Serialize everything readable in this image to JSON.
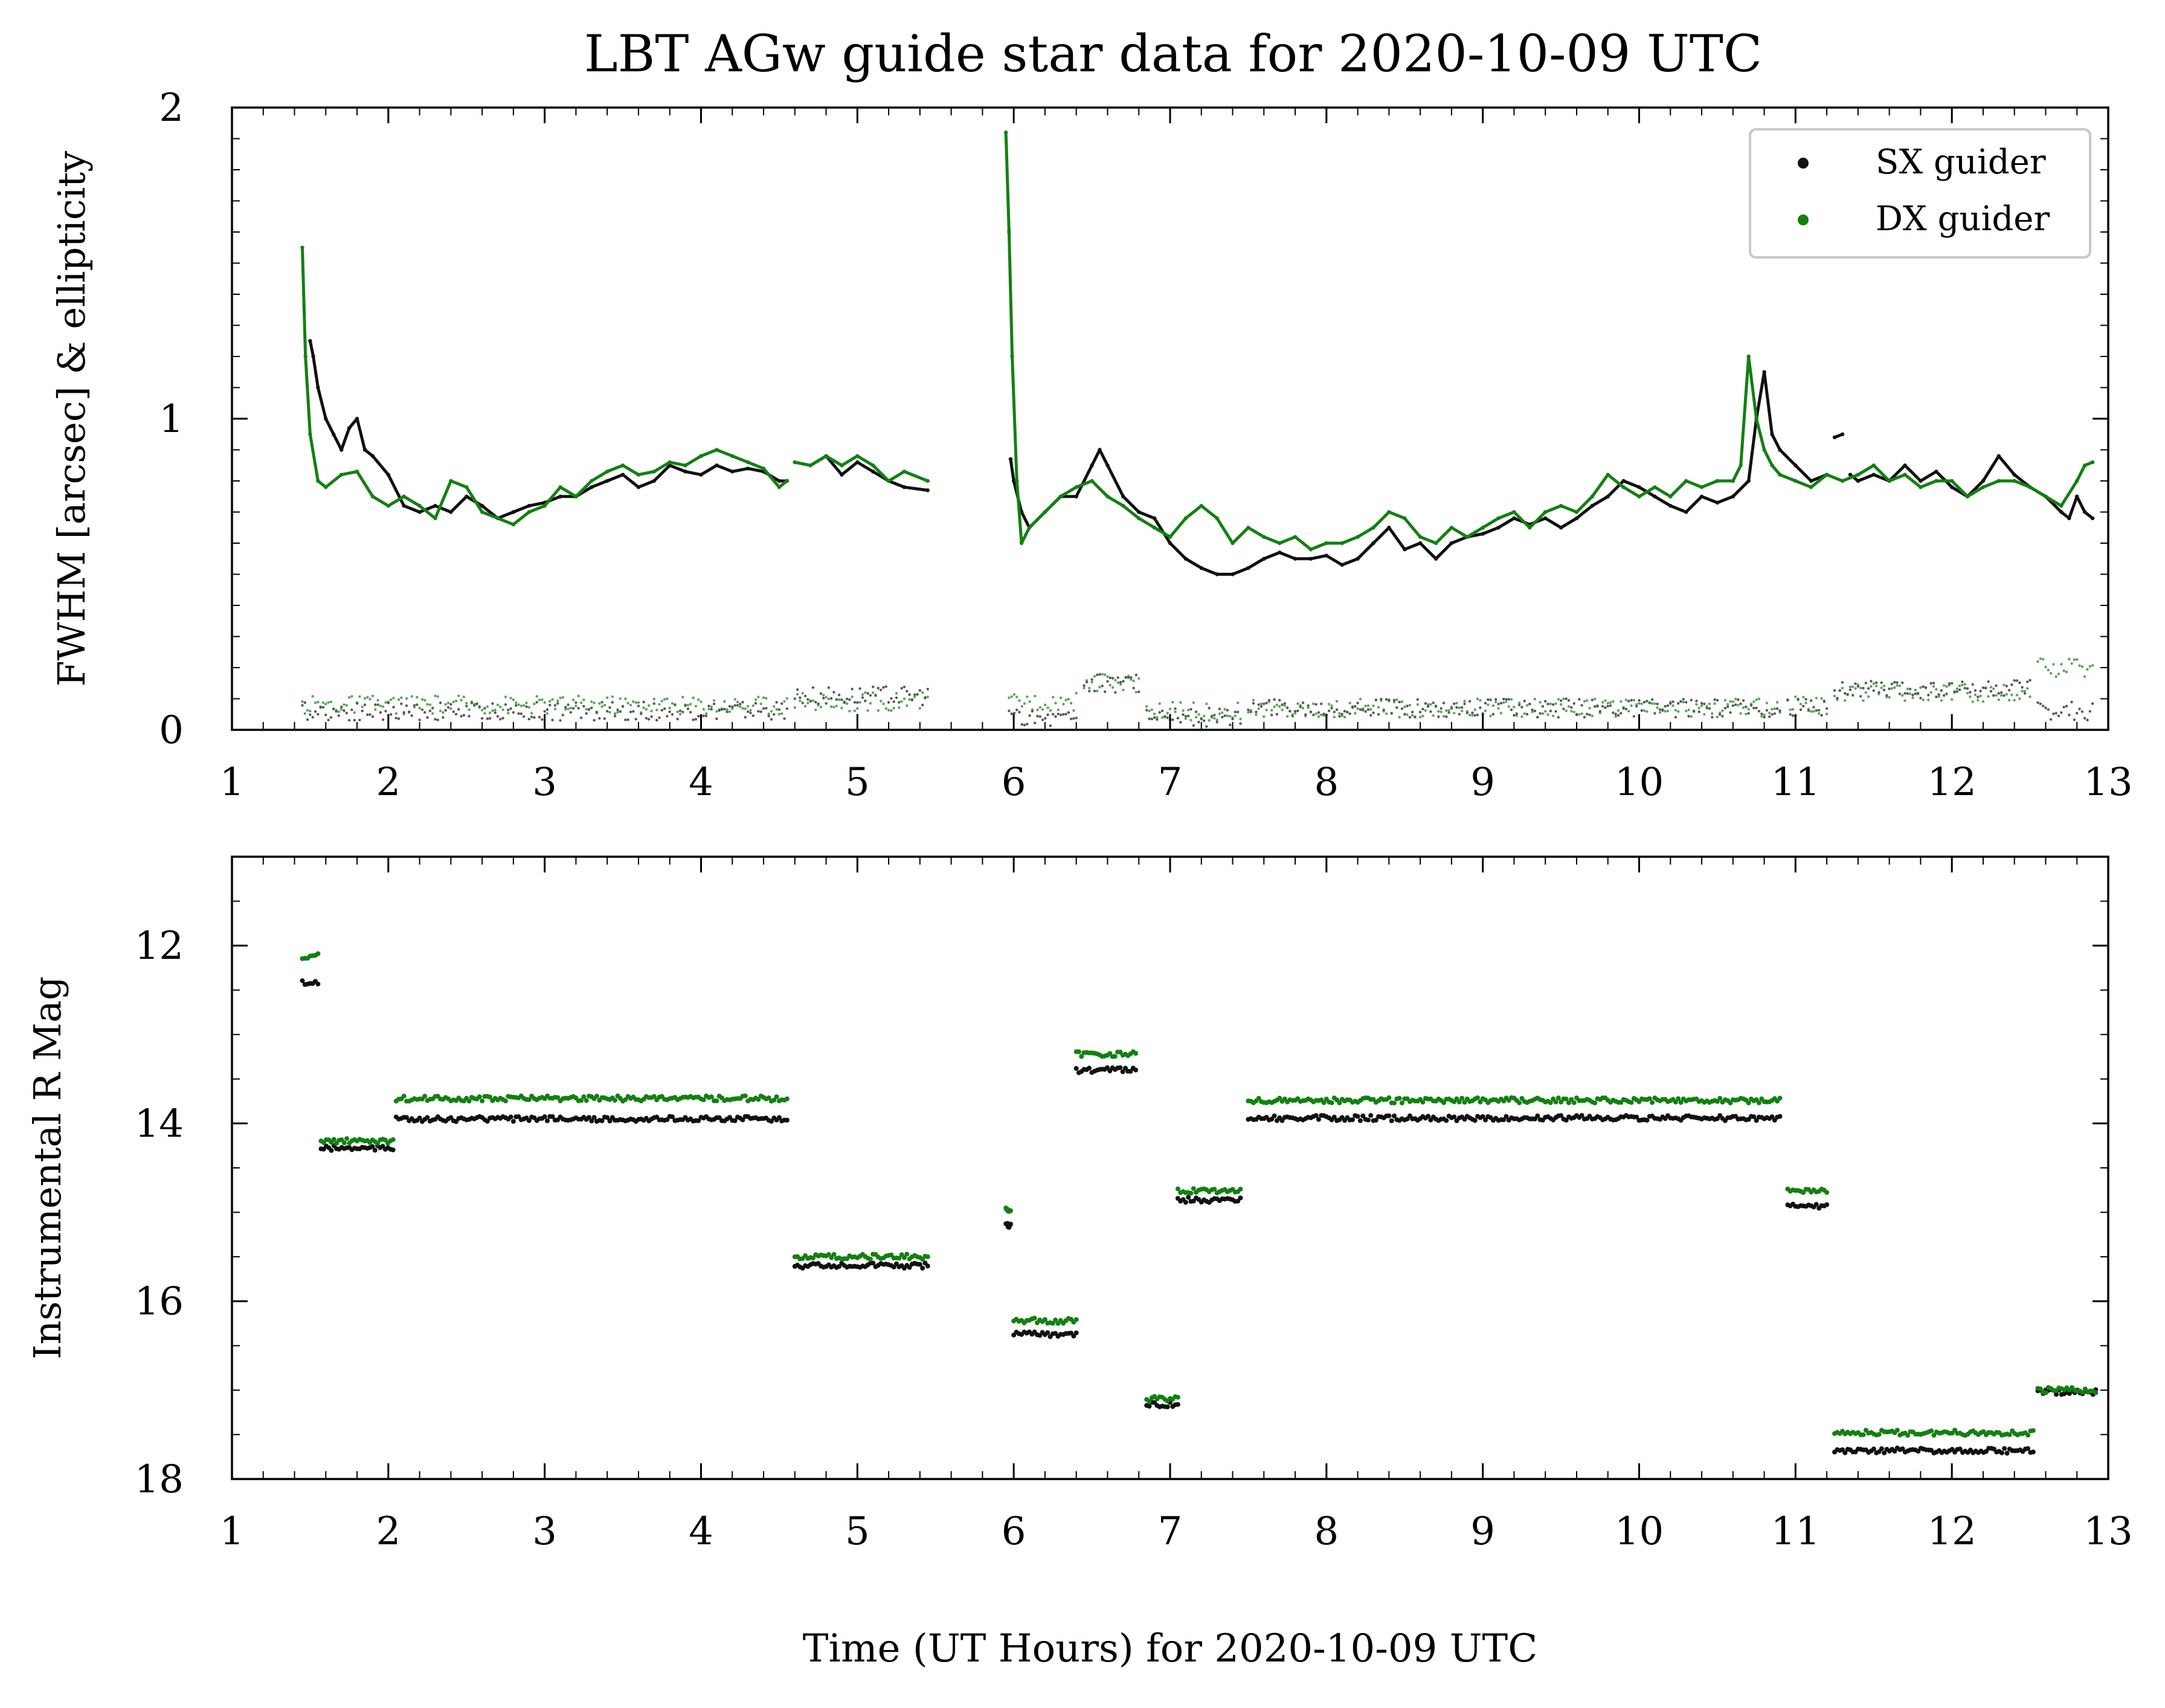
{
  "figure": {
    "title": "LBT AGw guide star data for 2020-10-09 UTC",
    "xlabel": "Time (UT Hours) for 2020-10-09 UTC",
    "colors": {
      "sx": "#111111",
      "dx": "#138012",
      "axis": "#000000",
      "background": "#ffffff"
    }
  },
  "chart_data": [
    {
      "type": "scatter",
      "panel": "top",
      "title": "LBT AGw guide star data for 2020-10-09 UTC",
      "xlabel": "",
      "ylabel": "FWHM [arcsec] & ellipticity",
      "xlim": [
        1,
        13
      ],
      "ylim": [
        0,
        2
      ],
      "xticks": [
        "1",
        "2",
        "3",
        "4",
        "5",
        "6",
        "7",
        "8",
        "9",
        "10",
        "11",
        "12",
        "13"
      ],
      "yticks": [
        "0",
        "1",
        "2"
      ],
      "grid": false,
      "legend": {
        "placement": "top-right",
        "entries": [
          "SX guider",
          "DX guider"
        ]
      },
      "series": [
        {
          "name": "SX guider",
          "color": "#111111",
          "kind": "fwhm",
          "x": [
            1.5,
            1.52,
            1.55,
            1.6,
            1.65,
            1.7,
            1.75,
            1.8,
            1.85,
            1.9,
            2.0,
            2.1,
            2.2,
            2.3,
            2.4,
            2.5,
            2.6,
            2.7,
            2.8,
            2.9,
            3.0,
            3.1,
            3.2,
            3.3,
            3.4,
            3.5,
            3.6,
            3.7,
            3.8,
            3.9,
            4.0,
            4.1,
            4.2,
            4.3,
            4.4,
            4.5,
            4.55,
            null,
            4.6,
            4.7,
            4.8,
            4.9,
            5.0,
            5.1,
            5.2,
            5.3,
            5.45,
            null,
            5.98,
            6.0,
            6.05,
            6.1,
            6.2,
            6.3,
            6.4,
            6.5,
            6.55,
            6.6,
            6.7,
            6.8,
            6.9,
            7.0,
            7.1,
            7.2,
            7.3,
            7.4,
            7.5,
            7.6,
            7.7,
            7.8,
            7.9,
            8.0,
            8.1,
            8.2,
            8.3,
            8.4,
            8.5,
            8.6,
            8.7,
            8.8,
            8.9,
            9.0,
            9.1,
            9.2,
            9.3,
            9.4,
            9.5,
            9.6,
            9.7,
            9.8,
            9.9,
            10.0,
            10.1,
            10.2,
            10.3,
            10.4,
            10.5,
            10.6,
            10.7,
            10.75,
            10.8,
            10.85,
            10.9,
            11.0,
            11.1,
            11.2,
            null,
            11.25,
            11.3,
            null,
            11.35,
            11.4,
            11.5,
            11.6,
            11.7,
            11.8,
            11.9,
            12.0,
            12.1,
            12.2,
            12.3,
            12.4,
            12.5,
            12.6,
            12.7,
            12.75,
            12.8,
            12.85,
            12.9
          ],
          "y": [
            1.25,
            1.2,
            1.1,
            1.0,
            0.95,
            0.9,
            0.97,
            1.0,
            0.9,
            0.88,
            0.82,
            0.72,
            0.7,
            0.72,
            0.7,
            0.75,
            0.72,
            0.68,
            0.7,
            0.72,
            0.73,
            0.75,
            0.75,
            0.78,
            0.8,
            0.82,
            0.78,
            0.8,
            0.85,
            0.83,
            0.82,
            0.85,
            0.83,
            0.84,
            0.83,
            0.8,
            0.8,
            null,
            0.86,
            0.85,
            0.88,
            0.82,
            0.86,
            0.83,
            0.8,
            0.78,
            0.77,
            null,
            0.87,
            0.8,
            0.7,
            0.65,
            0.7,
            0.75,
            0.75,
            0.85,
            0.9,
            0.85,
            0.75,
            0.7,
            0.68,
            0.6,
            0.55,
            0.52,
            0.5,
            0.5,
            0.52,
            0.55,
            0.57,
            0.55,
            0.55,
            0.56,
            0.53,
            0.55,
            0.6,
            0.65,
            0.58,
            0.6,
            0.55,
            0.6,
            0.62,
            0.63,
            0.65,
            0.68,
            0.66,
            0.68,
            0.65,
            0.68,
            0.72,
            0.75,
            0.8,
            0.78,
            0.75,
            0.72,
            0.7,
            0.75,
            0.73,
            0.75,
            0.8,
            1.0,
            1.15,
            0.95,
            0.9,
            0.85,
            0.8,
            0.82,
            null,
            0.94,
            0.95,
            null,
            0.82,
            0.8,
            0.82,
            0.8,
            0.85,
            0.8,
            0.83,
            0.78,
            0.75,
            0.8,
            0.88,
            0.82,
            0.78,
            0.75,
            0.7,
            0.68,
            0.75,
            0.7,
            0.68
          ]
        },
        {
          "name": "DX guider",
          "color": "#138012",
          "kind": "fwhm",
          "x": [
            1.45,
            1.47,
            1.5,
            1.55,
            1.6,
            1.7,
            1.8,
            1.9,
            2.0,
            2.1,
            2.2,
            2.3,
            2.4,
            2.5,
            2.6,
            2.7,
            2.8,
            2.9,
            3.0,
            3.1,
            3.2,
            3.3,
            3.4,
            3.5,
            3.6,
            3.7,
            3.8,
            3.9,
            4.0,
            4.1,
            4.2,
            4.3,
            4.4,
            4.5,
            4.55,
            null,
            4.6,
            4.7,
            4.8,
            4.9,
            5.0,
            5.1,
            5.2,
            5.3,
            5.45,
            null,
            5.95,
            5.97,
            5.99,
            6.02,
            6.05,
            6.1,
            6.2,
            6.3,
            6.4,
            6.5,
            6.6,
            6.7,
            6.8,
            6.9,
            7.0,
            7.1,
            7.2,
            7.3,
            7.4,
            7.5,
            7.6,
            7.7,
            7.8,
            7.9,
            8.0,
            8.1,
            8.2,
            8.3,
            8.4,
            8.5,
            8.6,
            8.7,
            8.8,
            8.9,
            9.0,
            9.1,
            9.2,
            9.3,
            9.4,
            9.5,
            9.6,
            9.7,
            9.8,
            9.9,
            10.0,
            10.1,
            10.2,
            10.3,
            10.4,
            10.5,
            10.6,
            10.65,
            10.7,
            10.75,
            10.8,
            10.85,
            10.9,
            11.0,
            11.1,
            11.2,
            11.3,
            11.4,
            11.5,
            11.6,
            11.7,
            11.8,
            11.9,
            12.0,
            12.1,
            12.2,
            12.3,
            12.4,
            12.5,
            12.6,
            12.7,
            12.8,
            12.85,
            12.9
          ],
          "y": [
            1.55,
            1.2,
            0.95,
            0.8,
            0.78,
            0.82,
            0.83,
            0.75,
            0.72,
            0.75,
            0.72,
            0.68,
            0.8,
            0.78,
            0.7,
            0.68,
            0.66,
            0.7,
            0.72,
            0.78,
            0.75,
            0.8,
            0.83,
            0.85,
            0.82,
            0.83,
            0.86,
            0.85,
            0.88,
            0.9,
            0.88,
            0.86,
            0.84,
            0.78,
            0.8,
            null,
            0.86,
            0.85,
            0.88,
            0.85,
            0.88,
            0.85,
            0.8,
            0.83,
            0.8,
            null,
            1.92,
            1.6,
            1.2,
            0.8,
            0.6,
            0.65,
            0.7,
            0.75,
            0.78,
            0.8,
            0.75,
            0.72,
            0.68,
            0.65,
            0.62,
            0.68,
            0.72,
            0.68,
            0.6,
            0.65,
            0.62,
            0.6,
            0.62,
            0.58,
            0.6,
            0.6,
            0.62,
            0.65,
            0.7,
            0.68,
            0.62,
            0.6,
            0.65,
            0.62,
            0.65,
            0.68,
            0.7,
            0.65,
            0.7,
            0.72,
            0.7,
            0.75,
            0.82,
            0.78,
            0.75,
            0.78,
            0.75,
            0.8,
            0.78,
            0.8,
            0.8,
            0.85,
            1.2,
            1.0,
            0.9,
            0.85,
            0.82,
            0.8,
            0.78,
            0.82,
            0.8,
            0.82,
            0.85,
            0.8,
            0.82,
            0.78,
            0.8,
            0.8,
            0.75,
            0.78,
            0.8,
            0.8,
            0.78,
            0.75,
            0.72,
            0.8,
            0.85,
            0.86
          ]
        },
        {
          "name": "",
          "color": "#111111",
          "kind": "ellipticity",
          "segments": [
            [
              1.45,
              4.55
            ],
            [
              4.6,
              5.45
            ],
            [
              5.97,
              6.4
            ],
            [
              6.45,
              6.8
            ],
            [
              6.85,
              7.45
            ],
            [
              7.5,
              10.9
            ],
            [
              10.95,
              11.2
            ],
            [
              11.25,
              12.5
            ],
            [
              12.55,
              12.9
            ]
          ],
          "levels": [
            0.06,
            0.11,
            0.04,
            0.15,
            0.04,
            0.07,
            0.07,
            0.13,
            0.06
          ]
        },
        {
          "name": "",
          "color": "#138012",
          "kind": "ellipticity",
          "segments": [
            [
              1.45,
              4.55
            ],
            [
              4.6,
              5.45
            ],
            [
              5.97,
              6.4
            ],
            [
              6.45,
              6.8
            ],
            [
              6.85,
              7.45
            ],
            [
              7.5,
              10.9
            ],
            [
              10.95,
              11.2
            ],
            [
              11.25,
              12.5
            ],
            [
              12.55,
              12.9
            ]
          ],
          "levels": [
            0.08,
            0.09,
            0.09,
            0.15,
            0.06,
            0.07,
            0.08,
            0.12,
            0.2
          ]
        }
      ]
    },
    {
      "type": "scatter",
      "panel": "bottom",
      "title": "",
      "xlabel": "Time (UT Hours) for 2020-10-09 UTC",
      "ylabel": "Instrumental R Mag",
      "xlim": [
        1,
        13
      ],
      "ylim": [
        18,
        11
      ],
      "inverted_y": true,
      "xticks": [
        "1",
        "2",
        "3",
        "4",
        "5",
        "6",
        "7",
        "8",
        "9",
        "10",
        "11",
        "12",
        "13"
      ],
      "yticks": [
        "12",
        "14",
        "16",
        "18"
      ],
      "grid": false,
      "series": [
        {
          "name": "SX guider",
          "color": "#111111",
          "segments": [
            [
              1.45,
              1.55
            ],
            [
              1.57,
              2.03
            ],
            [
              2.05,
              4.55
            ],
            [
              4.6,
              5.45
            ],
            [
              5.95,
              5.98
            ],
            [
              6.0,
              6.4
            ],
            [
              6.4,
              6.78
            ],
            [
              6.85,
              7.05
            ],
            [
              7.05,
              7.45
            ],
            [
              7.5,
              10.9
            ],
            [
              10.95,
              11.2
            ],
            [
              11.25,
              12.52
            ],
            [
              12.55,
              12.92
            ]
          ],
          "levels": [
            12.42,
            14.28,
            13.95,
            15.6,
            15.15,
            16.37,
            13.4,
            17.16,
            14.86,
            13.94,
            14.93,
            17.68,
            17.02
          ]
        },
        {
          "name": "DX guider",
          "color": "#138012",
          "segments": [
            [
              1.45,
              1.55
            ],
            [
              1.57,
              2.03
            ],
            [
              2.05,
              4.55
            ],
            [
              4.6,
              5.45
            ],
            [
              5.95,
              5.98
            ],
            [
              6.0,
              6.4
            ],
            [
              6.4,
              6.78
            ],
            [
              6.85,
              7.05
            ],
            [
              7.05,
              7.45
            ],
            [
              7.5,
              10.9
            ],
            [
              10.95,
              11.2
            ],
            [
              11.25,
              12.52
            ],
            [
              12.55,
              12.92
            ]
          ],
          "levels": [
            12.12,
            14.2,
            13.72,
            15.5,
            14.98,
            16.22,
            13.22,
            17.1,
            14.76,
            13.74,
            14.76,
            17.48,
            17.0
          ]
        }
      ]
    }
  ]
}
